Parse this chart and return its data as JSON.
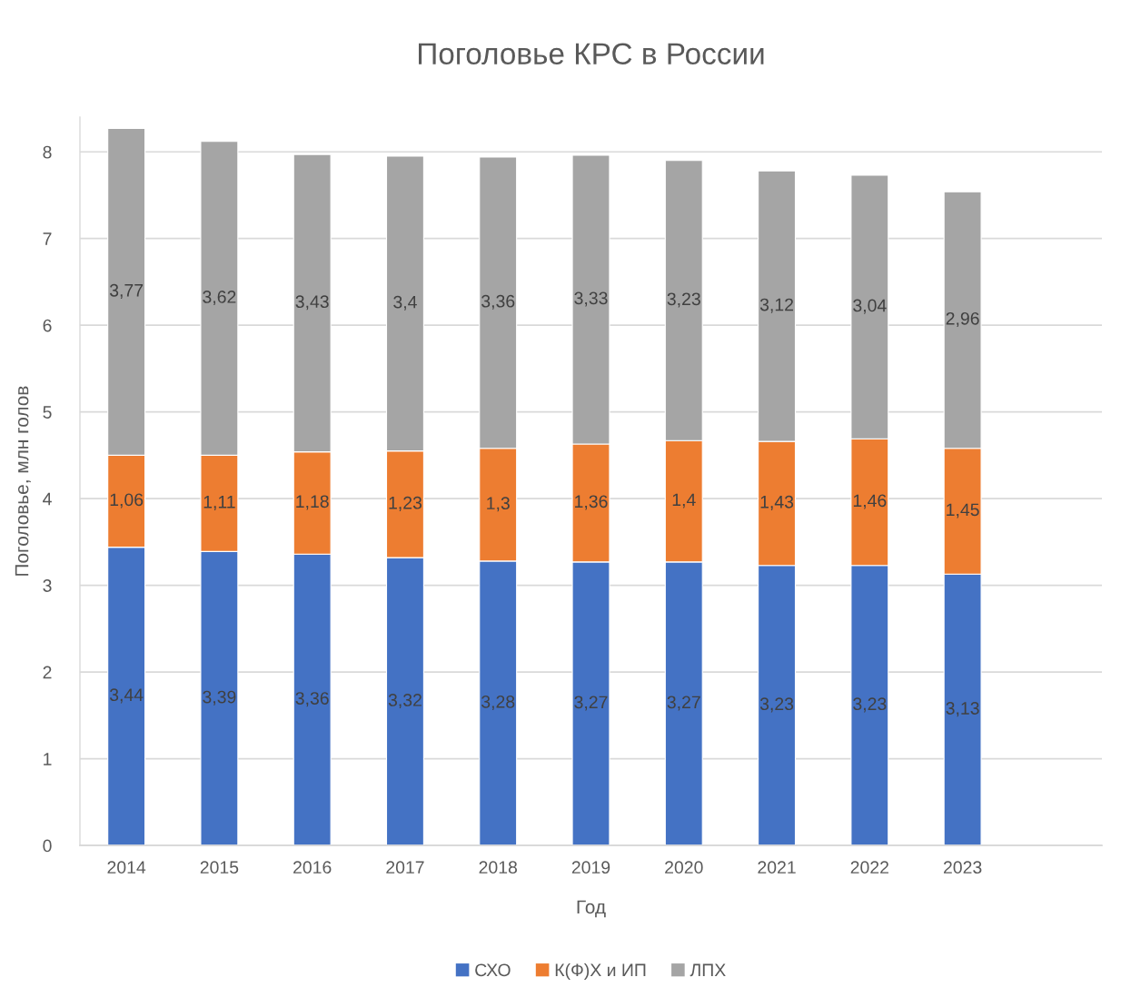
{
  "chart_data": {
    "type": "bar",
    "stacked": true,
    "title": "Поголовье КРС в России",
    "xlabel": "Год",
    "ylabel": "Поголовье, млн голов",
    "categories": [
      "2014",
      "2015",
      "2016",
      "2017",
      "2018",
      "2019",
      "2020",
      "2021",
      "2022",
      "2023",
      null
    ],
    "series": [
      {
        "name": "СХО",
        "color": "#4472c4",
        "values": [
          3.44,
          3.39,
          3.36,
          3.32,
          3.28,
          3.27,
          3.27,
          3.23,
          3.23,
          3.13,
          null
        ],
        "value_labels": [
          "3,44",
          "3,39",
          "3,36",
          "3,32",
          "3,28",
          "3,27",
          "3,27",
          "3,23",
          "3,23",
          "3,13",
          null
        ]
      },
      {
        "name": "К(Ф)Х и ИП",
        "color": "#ed7d31",
        "values": [
          1.06,
          1.11,
          1.18,
          1.23,
          1.3,
          1.36,
          1.4,
          1.43,
          1.46,
          1.45,
          null
        ],
        "value_labels": [
          "1,06",
          "1,11",
          "1,18",
          "1,23",
          "1,3",
          "1,36",
          "1,4",
          "1,43",
          "1,46",
          "1,45",
          null
        ]
      },
      {
        "name": "ЛПХ",
        "color": "#a5a5a5",
        "values": [
          3.77,
          3.62,
          3.43,
          3.4,
          3.36,
          3.33,
          3.23,
          3.12,
          3.04,
          2.96,
          null
        ],
        "value_labels": [
          "3,77",
          "3,62",
          "3,43",
          "3,4",
          "3,36",
          "3,33",
          "3,23",
          "3,12",
          "3,04",
          "2,96",
          null
        ]
      }
    ],
    "ylim": [
      0,
      8.4
    ],
    "yticks": [
      0,
      1,
      2,
      3,
      4,
      5,
      6,
      7,
      8
    ],
    "grid": "y",
    "legend": "bottom"
  }
}
